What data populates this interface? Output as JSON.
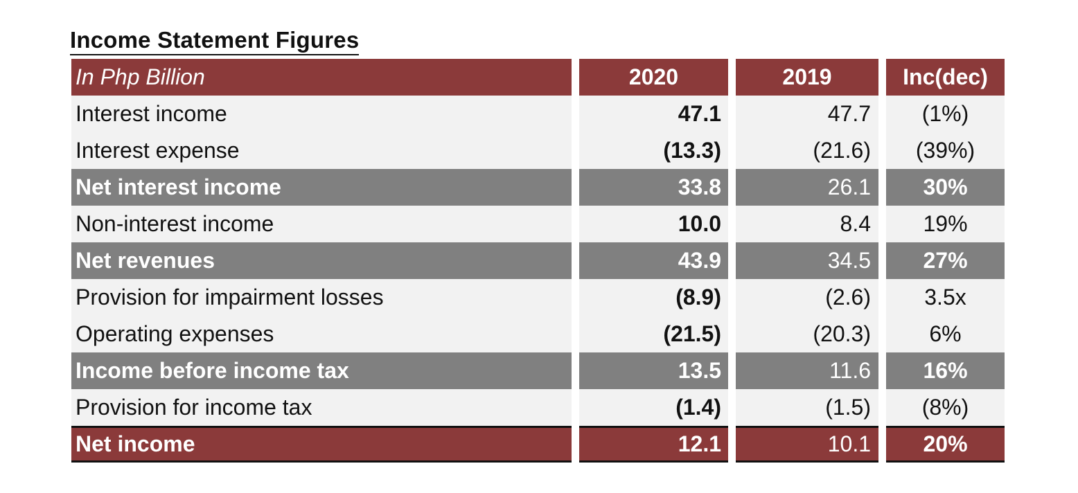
{
  "title": "Income Statement Figures",
  "header": {
    "label": "In Php Billion",
    "col_2020": "2020",
    "col_2019": "2019",
    "col_inc": "Inc(dec)"
  },
  "rows": [
    {
      "label": "Interest income",
      "v2020": "47.1",
      "v2019": "47.7",
      "inc": "(1%)"
    },
    {
      "label": "Interest expense",
      "v2020": "(13.3)",
      "v2019": "(21.6)",
      "inc": "(39%)"
    },
    {
      "label": "Net interest income",
      "v2020": "33.8",
      "v2019": "26.1",
      "inc": "30%"
    },
    {
      "label": "Non-interest income",
      "v2020": "10.0",
      "v2019": "8.4",
      "inc": "19%"
    },
    {
      "label": "Net revenues",
      "v2020": "43.9",
      "v2019": "34.5",
      "inc": "27%"
    },
    {
      "label": "Provision for impairment losses",
      "v2020": "(8.9)",
      "v2019": "(2.6)",
      "inc": "3.5x"
    },
    {
      "label": "Operating expenses",
      "v2020": "(21.5)",
      "v2019": "(20.3)",
      "inc": "6%"
    },
    {
      "label": "Income before income tax",
      "v2020": "13.5",
      "v2019": "11.6",
      "inc": "16%"
    },
    {
      "label": "Provision for income tax",
      "v2020": "(1.4)",
      "v2019": "(1.5)",
      "inc": "(8%)"
    },
    {
      "label": "Net income",
      "v2020": "12.1",
      "v2019": "10.1",
      "inc": "20%"
    }
  ],
  "colors": {
    "header_bg": "#8b3a3a",
    "subtotal_bg": "#808080",
    "row_bg": "#f2f2f2"
  }
}
